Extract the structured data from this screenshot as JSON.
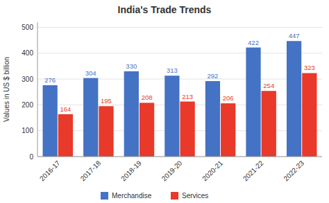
{
  "chart_data": {
    "type": "bar",
    "title": "India's Trade Trends",
    "y_label": "Values in US $ billion",
    "categories": [
      "2016-17",
      "2017-18",
      "2018-19",
      "2019-20",
      "2020-21",
      "2021-22",
      "2022-23"
    ],
    "series": [
      {
        "name": "Merchandise",
        "color": "#4472C4",
        "values": [
          276,
          304,
          330,
          313,
          292,
          422,
          447
        ]
      },
      {
        "name": "Services",
        "color": "#E8392A",
        "values": [
          164,
          195,
          208,
          213,
          206,
          254,
          323
        ]
      }
    ],
    "ylim": [
      0,
      520
    ],
    "yticks": [
      0,
      100,
      200,
      300,
      400,
      500
    ],
    "grid": true,
    "legend": "bottom",
    "data_labels": true
  }
}
